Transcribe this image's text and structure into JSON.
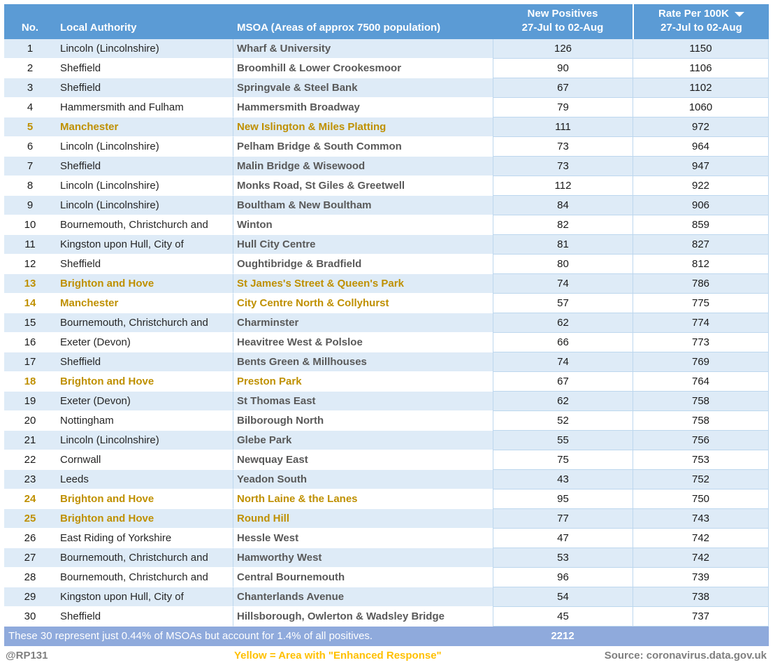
{
  "table": {
    "columns": {
      "no": "No.",
      "local_authority": "Local Authority",
      "msoa": "MSOA (Areas of approx 7500 population)",
      "new_positives_line1": "New Positives",
      "new_positives_line2": "27-Jul to 02-Aug",
      "rate_line1": "Rate Per 100K",
      "rate_line2": "27-Jul to 02-Aug"
    },
    "sort_icon": "sort-descending-arrow",
    "rows": [
      {
        "no": "1",
        "local_authority": "Lincoln (Lincolnshire)",
        "msoa": "Wharf & University",
        "new_positives": "126",
        "rate": "1150",
        "highlight": false
      },
      {
        "no": "2",
        "local_authority": "Sheffield",
        "msoa": "Broomhill & Lower Crookesmoor",
        "new_positives": "90",
        "rate": "1106",
        "highlight": false
      },
      {
        "no": "3",
        "local_authority": "Sheffield",
        "msoa": "Springvale & Steel Bank",
        "new_positives": "67",
        "rate": "1102",
        "highlight": false
      },
      {
        "no": "4",
        "local_authority": "Hammersmith and Fulham",
        "msoa": "Hammersmith Broadway",
        "new_positives": "79",
        "rate": "1060",
        "highlight": false
      },
      {
        "no": "5",
        "local_authority": "Manchester",
        "msoa": "New Islington & Miles Platting",
        "new_positives": "111",
        "rate": "972",
        "highlight": true
      },
      {
        "no": "6",
        "local_authority": "Lincoln (Lincolnshire)",
        "msoa": "Pelham Bridge & South Common",
        "new_positives": "73",
        "rate": "964",
        "highlight": false
      },
      {
        "no": "7",
        "local_authority": "Sheffield",
        "msoa": "Malin Bridge & Wisewood",
        "new_positives": "73",
        "rate": "947",
        "highlight": false
      },
      {
        "no": "8",
        "local_authority": "Lincoln (Lincolnshire)",
        "msoa": "Monks Road, St Giles & Greetwell",
        "new_positives": "112",
        "rate": "922",
        "highlight": false
      },
      {
        "no": "9",
        "local_authority": "Lincoln (Lincolnshire)",
        "msoa": "Boultham & New Boultham",
        "new_positives": "84",
        "rate": "906",
        "highlight": false
      },
      {
        "no": "10",
        "local_authority": "Bournemouth, Christchurch and",
        "msoa": "Winton",
        "new_positives": "82",
        "rate": "859",
        "highlight": false
      },
      {
        "no": "11",
        "local_authority": "Kingston upon Hull, City of",
        "msoa": "Hull City Centre",
        "new_positives": "81",
        "rate": "827",
        "highlight": false
      },
      {
        "no": "12",
        "local_authority": "Sheffield",
        "msoa": "Oughtibridge & Bradfield",
        "new_positives": "80",
        "rate": "812",
        "highlight": false
      },
      {
        "no": "13",
        "local_authority": "Brighton and Hove",
        "msoa": "St James's Street & Queen's Park",
        "new_positives": "74",
        "rate": "786",
        "highlight": true
      },
      {
        "no": "14",
        "local_authority": "Manchester",
        "msoa": "City Centre North & Collyhurst",
        "new_positives": "57",
        "rate": "775",
        "highlight": true
      },
      {
        "no": "15",
        "local_authority": "Bournemouth, Christchurch and",
        "msoa": "Charminster",
        "new_positives": "62",
        "rate": "774",
        "highlight": false
      },
      {
        "no": "16",
        "local_authority": "Exeter (Devon)",
        "msoa": "Heavitree West & Polsloe",
        "new_positives": "66",
        "rate": "773",
        "highlight": false
      },
      {
        "no": "17",
        "local_authority": "Sheffield",
        "msoa": "Bents Green & Millhouses",
        "new_positives": "74",
        "rate": "769",
        "highlight": false
      },
      {
        "no": "18",
        "local_authority": "Brighton and Hove",
        "msoa": "Preston Park",
        "new_positives": "67",
        "rate": "764",
        "highlight": true
      },
      {
        "no": "19",
        "local_authority": "Exeter (Devon)",
        "msoa": "St Thomas East",
        "new_positives": "62",
        "rate": "758",
        "highlight": false
      },
      {
        "no": "20",
        "local_authority": "Nottingham",
        "msoa": "Bilborough North",
        "new_positives": "52",
        "rate": "758",
        "highlight": false
      },
      {
        "no": "21",
        "local_authority": "Lincoln (Lincolnshire)",
        "msoa": "Glebe Park",
        "new_positives": "55",
        "rate": "756",
        "highlight": false
      },
      {
        "no": "22",
        "local_authority": "Cornwall",
        "msoa": "Newquay East",
        "new_positives": "75",
        "rate": "753",
        "highlight": false
      },
      {
        "no": "23",
        "local_authority": "Leeds",
        "msoa": "Yeadon South",
        "new_positives": "43",
        "rate": "752",
        "highlight": false
      },
      {
        "no": "24",
        "local_authority": "Brighton and Hove",
        "msoa": "North Laine & the Lanes",
        "new_positives": "95",
        "rate": "750",
        "highlight": true
      },
      {
        "no": "25",
        "local_authority": "Brighton and Hove",
        "msoa": "Round Hill",
        "new_positives": "77",
        "rate": "743",
        "highlight": true
      },
      {
        "no": "26",
        "local_authority": "East Riding of Yorkshire",
        "msoa": "Hessle West",
        "new_positives": "47",
        "rate": "742",
        "highlight": false
      },
      {
        "no": "27",
        "local_authority": "Bournemouth, Christchurch and",
        "msoa": "Hamworthy West",
        "new_positives": "53",
        "rate": "742",
        "highlight": false
      },
      {
        "no": "28",
        "local_authority": "Bournemouth, Christchurch and",
        "msoa": "Central Bournemouth",
        "new_positives": "96",
        "rate": "739",
        "highlight": false
      },
      {
        "no": "29",
        "local_authority": "Kingston upon Hull, City of",
        "msoa": "Chanterlands Avenue",
        "new_positives": "54",
        "rate": "738",
        "highlight": false
      },
      {
        "no": "30",
        "local_authority": "Sheffield",
        "msoa": "Hillsborough, Owlerton & Wadsley Bridge",
        "new_positives": "45",
        "rate": "737",
        "highlight": false
      }
    ]
  },
  "footer": {
    "summary": "These 30 represent just 0.44% of MSOAs but account for 1.4% of all positives.",
    "total_new_positives": "2212"
  },
  "bottom": {
    "handle": "@RP131",
    "legend": "Yellow = Area with \"Enhanced Response\"",
    "source": "Source: coronavirus.data.gov.uk"
  },
  "colors": {
    "header_bg": "#5B9BD5",
    "row_alt_bg": "#DEEBF7",
    "grid_border": "#BDD7EE",
    "band_bg": "#8FAADC",
    "highlight_text": "#BF9000",
    "legend_yellow": "#FFC000",
    "msoa_text": "#595959",
    "muted_text": "#7F7F7F"
  }
}
